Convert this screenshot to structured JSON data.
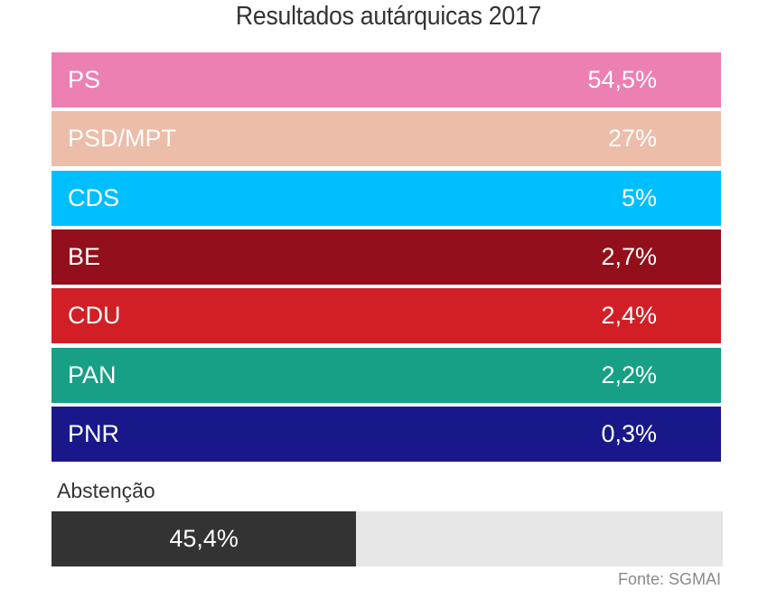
{
  "chart_data": {
    "type": "bar",
    "orientation": "horizontal",
    "title": "Resultados autárquicas 2017",
    "categories": [
      "PS",
      "PSD/MPT",
      "CDS",
      "BE",
      "CDU",
      "PAN",
      "PNR"
    ],
    "values": [
      54.5,
      27,
      5,
      2.7,
      2.4,
      2.2,
      0.3
    ],
    "value_labels": [
      "54,5%",
      "27%",
      "5%",
      "2,7%",
      "2,4%",
      "2,2%",
      "0,3%"
    ],
    "colors": [
      "#ec80b3",
      "#ecbda9",
      "#00bfff",
      "#920f1b",
      "#d21f26",
      "#17a085",
      "#18188a"
    ],
    "unit": "%",
    "xlabel": "",
    "ylabel": "",
    "abstention": {
      "label": "Abstenção",
      "value": 45.4,
      "value_label": "45,4%",
      "fill_color": "#333333",
      "track_color": "#e6e6e6"
    },
    "source": "Fonte: SGMAI"
  }
}
